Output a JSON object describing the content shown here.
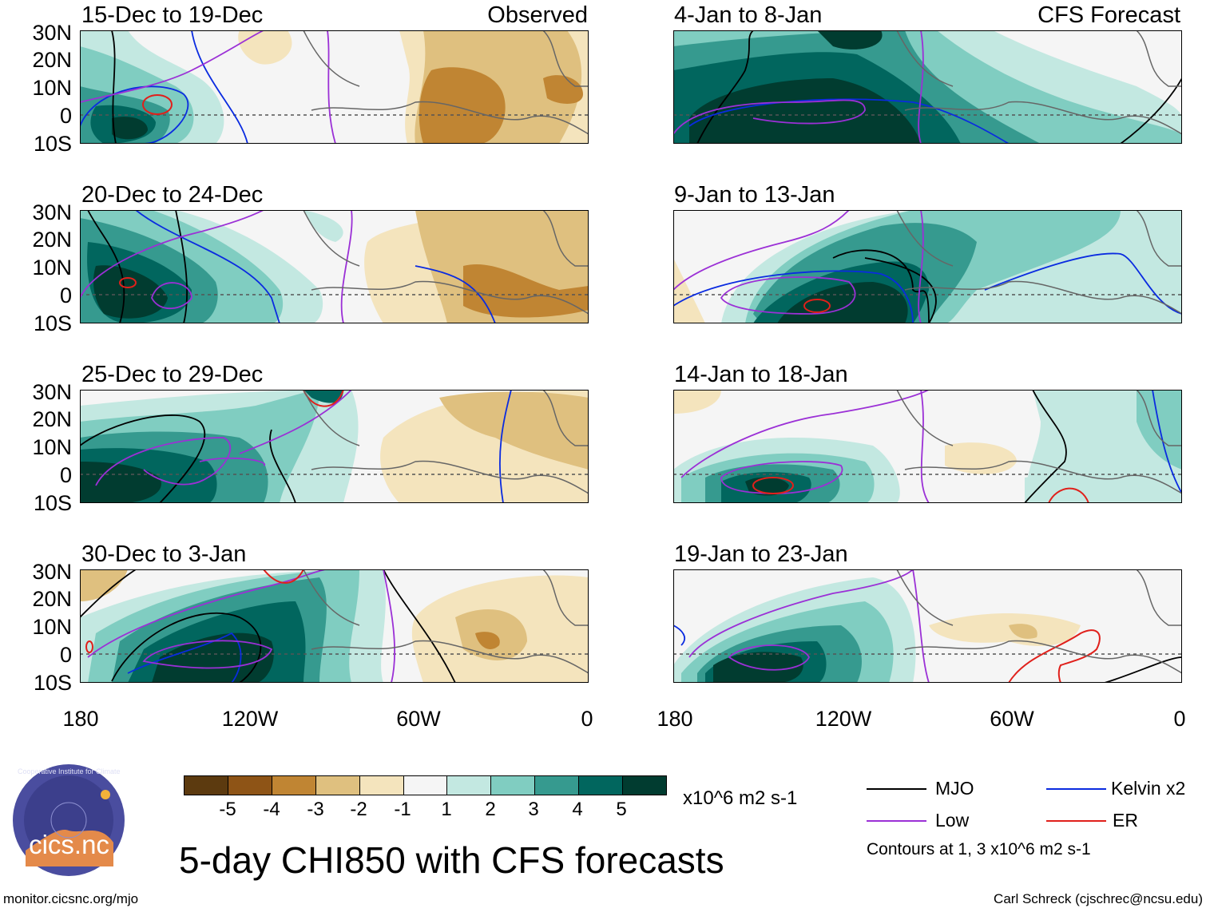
{
  "labels": {
    "observed": "Observed",
    "forecast": "CFS Forecast"
  },
  "panels": {
    "left": [
      {
        "title": "15-Dec to 19-Dec"
      },
      {
        "title": "20-Dec to 24-Dec"
      },
      {
        "title": "25-Dec to 29-Dec"
      },
      {
        "title": "30-Dec to 3-Jan"
      }
    ],
    "right": [
      {
        "title": "4-Jan to 8-Jan"
      },
      {
        "title": "9-Jan to 13-Jan"
      },
      {
        "title": "14-Jan to 18-Jan"
      },
      {
        "title": "19-Jan to 23-Jan"
      }
    ]
  },
  "axes": {
    "lat": [
      "30N",
      "20N",
      "10N",
      "0",
      "10S"
    ],
    "lon": [
      "180",
      "120W",
      "60W",
      "0"
    ]
  },
  "colorbar": {
    "colors": [
      "#5c3a0f",
      "#8e5416",
      "#c08533",
      "#dfc07f",
      "#f4e4bd",
      "#f5f5f5",
      "#c3e8e1",
      "#80cdc1",
      "#369a8f",
      "#01665e",
      "#013c30"
    ],
    "labels": [
      "-5",
      "-4",
      "-3",
      "-2",
      "-1",
      "1",
      "2",
      "3",
      "4",
      "5"
    ],
    "units": "x10^6 m2 s-1"
  },
  "legend": {
    "mjo": {
      "label": "MJO",
      "color": "#000000"
    },
    "kelvin": {
      "label": "Kelvin x2",
      "color": "#0a2be0"
    },
    "low": {
      "label": "Low",
      "color": "#9b30d6"
    },
    "er": {
      "label": "ER",
      "color": "#e0201b"
    },
    "note": "Contours at 1, 3 x10^6 m2 s-1"
  },
  "logo": {
    "text": "cics.nc",
    "ring_text": "Cooperative Institute for Climate and Satellites"
  },
  "title": "5-day CHI850 with CFS forecasts",
  "footer": {
    "url": "monitor.cicsnc.org/mjo",
    "credit": "Carl Schreck (cjschrec@ncsu.edu)"
  }
}
